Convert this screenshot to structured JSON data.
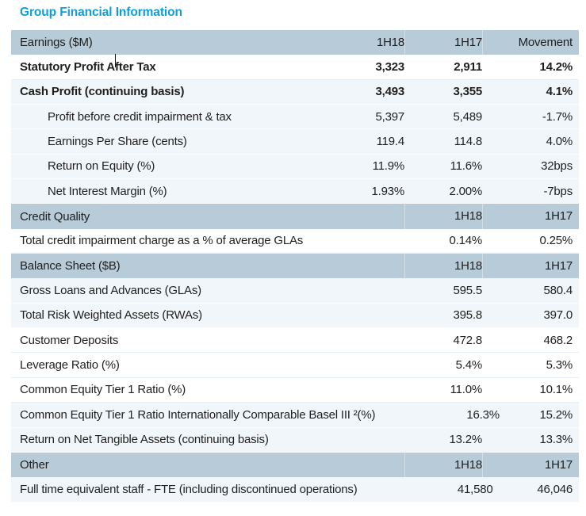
{
  "page_title": "Group Financial Information",
  "colors": {
    "title_accent": "#0d9edb",
    "section_header_bg": "#b7cbd8",
    "row_tint": "#f0f6f9",
    "text": "#1f1f1f"
  },
  "table": {
    "rows": [
      {
        "type": "header",
        "label": "Earnings ($M)",
        "c1": "1H18",
        "c2": "1H17",
        "c3": "Movement"
      },
      {
        "type": "data",
        "bold": true,
        "label": "Statutory Profit After Tax",
        "c1": "3,323",
        "c2": "2,911",
        "c3": "14.2%",
        "text_cursor_visible": true
      },
      {
        "type": "data",
        "bold": true,
        "label": "Cash Profit (continuing basis)",
        "c1": "3,493",
        "c2": "3,355",
        "c3": "4.1%"
      },
      {
        "type": "data",
        "indent": true,
        "label": "Profit before credit impairment & tax",
        "c1": "5,397",
        "c2": "5,489",
        "c3": "-1.7%"
      },
      {
        "type": "data",
        "indent": true,
        "label": "Earnings Per Share (cents)",
        "c1": "119.4",
        "c2": "114.8",
        "c3": "4.0%"
      },
      {
        "type": "data",
        "indent": true,
        "label": "Return on Equity (%)",
        "c1": "11.9%",
        "c2": "11.6%",
        "c3": "32bps"
      },
      {
        "type": "data",
        "indent": true,
        "label": "Net Interest Margin (%)",
        "c1": "1.93%",
        "c2": "2.00%",
        "c3": "-7bps"
      },
      {
        "type": "header",
        "label": "Credit Quality",
        "c2": "1H18",
        "c3": "1H17"
      },
      {
        "type": "data",
        "label": "Total credit impairment charge as a % of average GLAs",
        "c2": "0.14%",
        "c3": "0.25%"
      },
      {
        "type": "header",
        "label": "Balance Sheet ($B)",
        "c2": "1H18",
        "c3": "1H17"
      },
      {
        "type": "data",
        "label": "Gross Loans and Advances (GLAs)",
        "c2": "595.5",
        "c3": "580.4"
      },
      {
        "type": "data",
        "label": "Total Risk Weighted Assets (RWAs)",
        "c2": "395.8",
        "c3": "397.0"
      },
      {
        "type": "data",
        "label": "Customer Deposits",
        "c2": "472.8",
        "c3": "468.2"
      },
      {
        "type": "data",
        "label": "Leverage Ratio (%)",
        "c2": "5.4%",
        "c3": "5.3%"
      },
      {
        "type": "data",
        "label": "Common Equity Tier 1 Ratio (%)",
        "c2": "11.0%",
        "c3": "10.1%"
      },
      {
        "type": "data",
        "label": "Common Equity Tier 1 Ratio Internationally Comparable Basel III ²(%)",
        "c2": "16.3%",
        "c3": "15.2%"
      },
      {
        "type": "data",
        "label": "Return on Net Tangible Assets (continuing basis)",
        "c2": "13.2%",
        "c3": "13.3%"
      },
      {
        "type": "header",
        "label": "Other",
        "c2": "1H18",
        "c3": "1H17"
      },
      {
        "type": "data",
        "label": "Full time equivalent staff - FTE (including discontinued operations)",
        "c2": "41,580",
        "c3": "46,046"
      }
    ]
  }
}
